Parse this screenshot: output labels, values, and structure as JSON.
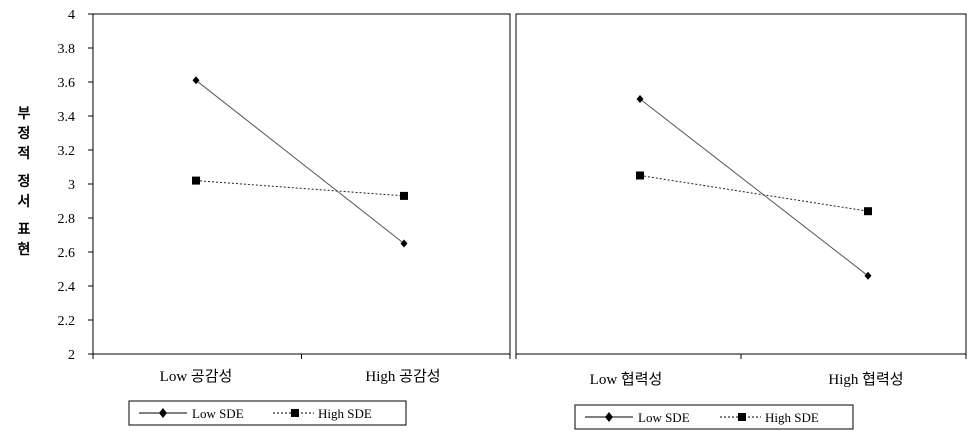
{
  "chart_data": {
    "type": "line",
    "ylabel": "부정적 정서 표현",
    "ylim": [
      2,
      4
    ],
    "yticks": [
      "2",
      "2.2",
      "2.4",
      "2.6",
      "2.8",
      "3",
      "3.2",
      "3.4",
      "3.6",
      "3.8",
      "4"
    ],
    "panels": [
      {
        "categories": [
          "Low 공감성",
          "High  공감성"
        ],
        "series": [
          {
            "name": "Low SDE",
            "values": [
              3.61,
              2.65
            ]
          },
          {
            "name": "High SDE",
            "values": [
              3.02,
              2.93
            ]
          }
        ],
        "legend": [
          "Low SDE",
          "High SDE"
        ]
      },
      {
        "categories": [
          "Low 협력성",
          "High  협력성"
        ],
        "series": [
          {
            "name": "Low SDE",
            "values": [
              3.5,
              2.46
            ]
          },
          {
            "name": "High SDE",
            "values": [
              3.05,
              2.84
            ]
          }
        ],
        "legend": [
          "Low SDE",
          "High SDE"
        ]
      }
    ]
  }
}
